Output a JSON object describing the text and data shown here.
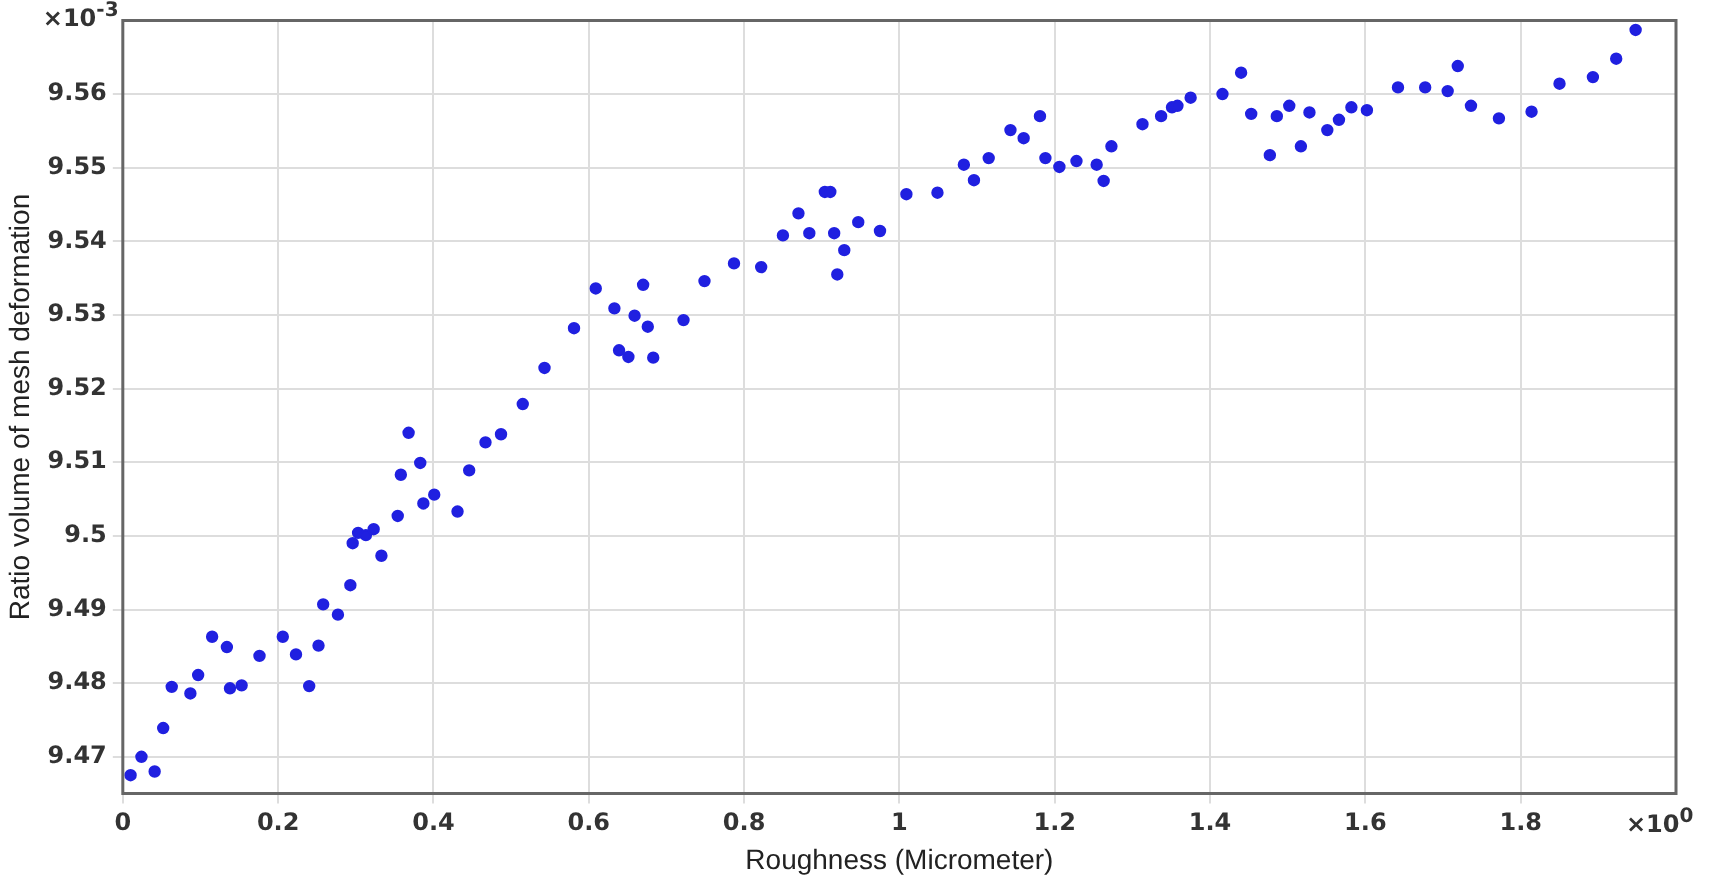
{
  "chart_data": {
    "type": "scatter",
    "xlabel": "Roughness (Micrometer)",
    "ylabel": "Ratio volume of mesh deformation",
    "annotations": [
      "×10$^{-3}$",
      "×10$^{0}$"
    ],
    "x": [
      0.01,
      0.024,
      0.041,
      0.052,
      0.063,
      0.087,
      0.097,
      0.115,
      0.134,
      0.138,
      0.153,
      0.176,
      0.206,
      0.223,
      0.24,
      0.252,
      0.258,
      0.277,
      0.293,
      0.296,
      0.303,
      0.313,
      0.323,
      0.333,
      0.354,
      0.358,
      0.368,
      0.383,
      0.387,
      0.401,
      0.431,
      0.446,
      0.467,
      0.487,
      0.515,
      0.543,
      0.581,
      0.609,
      0.633,
      0.639,
      0.651,
      0.659,
      0.67,
      0.676,
      0.683,
      0.722,
      0.749,
      0.787,
      0.822,
      0.85,
      0.87,
      0.884,
      0.904,
      0.911,
      0.916,
      0.92,
      0.929,
      0.947,
      0.975,
      1.009,
      1.049,
      1.083,
      1.096,
      1.115,
      1.143,
      1.16,
      1.181,
      1.188,
      1.206,
      1.228,
      1.254,
      1.263,
      1.273,
      1.313,
      1.337,
      1.351,
      1.358,
      1.375,
      1.416,
      1.44,
      1.453,
      1.477,
      1.486,
      1.502,
      1.517,
      1.528,
      1.551,
      1.566,
      1.582,
      1.602,
      1.642,
      1.677,
      1.706,
      1.719,
      1.736,
      1.772,
      1.814,
      1.85,
      1.893,
      1.923,
      1.948
    ],
    "series": [
      {
        "color": "#2020e0",
        "values": [
          9.4675,
          9.47,
          9.468,
          9.4739,
          9.4795,
          9.4786,
          9.4811,
          9.4863,
          9.4849,
          9.4793,
          9.4797,
          9.4837,
          9.4863,
          9.4839,
          9.4796,
          9.4851,
          9.4907,
          9.4893,
          9.4933,
          9.499,
          9.5004,
          9.5001,
          9.5009,
          9.4973,
          9.5027,
          9.5083,
          9.514,
          9.5099,
          9.5044,
          9.5056,
          9.5033,
          9.5089,
          9.5127,
          9.5138,
          9.5179,
          9.5228,
          9.5282,
          9.5336,
          9.5309,
          9.5252,
          9.5243,
          9.5299,
          9.5341,
          9.5284,
          9.5242,
          9.5293,
          9.5346,
          9.537,
          9.5365,
          9.5408,
          9.5438,
          9.5411,
          9.5467,
          9.5467,
          9.5411,
          9.5355,
          9.5388,
          9.5426,
          9.5414,
          9.5464,
          9.5466,
          9.5504,
          9.5483,
          9.5513,
          9.5551,
          9.554,
          9.557,
          9.5513,
          9.5501,
          9.5509,
          9.5504,
          9.5482,
          9.5529,
          9.5559,
          9.557,
          9.5582,
          9.5584,
          9.5595,
          9.56,
          9.5629,
          9.5573,
          9.5517,
          9.557,
          9.5584,
          9.5529,
          9.5575,
          9.5551,
          9.5565,
          9.5582,
          9.5578,
          9.5609,
          9.5609,
          9.5604,
          9.5638,
          9.5584,
          9.5567,
          9.5576,
          9.5614,
          9.5623,
          9.5648,
          9.5687
        ]
      }
    ],
    "xlim": [
      0,
      2
    ],
    "ylim": [
      9.465,
      9.57
    ],
    "xticks": [
      0,
      0.2,
      0.4,
      0.6,
      0.8,
      1,
      1.2,
      1.4,
      1.6,
      1.8
    ],
    "yticks": [
      9.47,
      9.48,
      9.49,
      9.5,
      9.51,
      9.52,
      9.53,
      9.54,
      9.55,
      9.56
    ],
    "grid": true,
    "marker": "circle",
    "legend": false
  }
}
